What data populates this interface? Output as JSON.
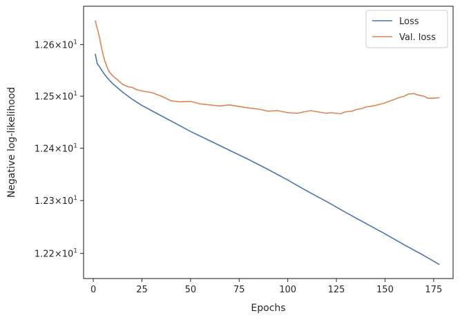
{
  "chart_data": {
    "type": "line",
    "title": "",
    "xlabel": "Epochs",
    "ylabel": "Negative log-likelihood",
    "xlim": [
      -5,
      185
    ],
    "ylim": [
      12.1528,
      12.6748
    ],
    "y_scale": "log",
    "xticks": [
      0,
      25,
      50,
      75,
      100,
      125,
      150,
      175
    ],
    "yticks": [
      {
        "value": 12.2,
        "mantissa": "1.22",
        "base": "10",
        "exp": "1"
      },
      {
        "value": 12.3,
        "mantissa": "1.23",
        "base": "10",
        "exp": "1"
      },
      {
        "value": 12.4,
        "mantissa": "1.24",
        "base": "10",
        "exp": "1"
      },
      {
        "value": 12.5,
        "mantissa": "1.25",
        "base": "10",
        "exp": "1"
      },
      {
        "value": 12.6,
        "mantissa": "1.26",
        "base": "10",
        "exp": "1"
      }
    ],
    "grid": false,
    "legend_position": "top-right",
    "series": [
      {
        "name": "Loss",
        "color": "#4c72b0",
        "x": [
          1,
          2,
          3,
          5,
          7,
          10,
          15,
          20,
          25,
          30,
          40,
          50,
          60,
          70,
          80,
          90,
          100,
          110,
          120,
          130,
          140,
          150,
          160,
          170,
          178
        ],
        "y": [
          12.582,
          12.563,
          12.558,
          12.546,
          12.536,
          12.524,
          12.508,
          12.494,
          12.482,
          12.472,
          12.452,
          12.432,
          12.414,
          12.396,
          12.378,
          12.359,
          12.339,
          12.318,
          12.298,
          12.277,
          12.257,
          12.237,
          12.216,
          12.196,
          12.179
        ]
      },
      {
        "name": "Val. loss",
        "color": "#dd8452",
        "x": [
          1,
          2,
          3,
          4,
          5,
          6,
          7,
          8,
          10,
          12,
          15,
          18,
          20,
          22,
          25,
          30,
          35,
          40,
          42,
          45,
          50,
          55,
          60,
          65,
          70,
          75,
          80,
          85,
          90,
          95,
          100,
          105,
          110,
          112,
          115,
          118,
          120,
          122,
          125,
          127,
          130,
          133,
          135,
          138,
          140,
          142,
          145,
          147,
          150,
          152,
          155,
          157,
          160,
          162,
          165,
          167,
          170,
          172,
          175,
          178
        ],
        "y": [
          12.647,
          12.632,
          12.617,
          12.598,
          12.581,
          12.567,
          12.557,
          12.548,
          12.539,
          12.533,
          12.523,
          12.518,
          12.517,
          12.513,
          12.51,
          12.507,
          12.5,
          12.491,
          12.49,
          12.489,
          12.49,
          12.485,
          12.483,
          12.481,
          12.483,
          12.48,
          12.477,
          12.475,
          12.471,
          12.472,
          12.468,
          12.467,
          12.471,
          12.472,
          12.47,
          12.468,
          12.467,
          12.468,
          12.467,
          12.466,
          12.47,
          12.471,
          12.474,
          12.476,
          12.479,
          12.48,
          12.482,
          12.484,
          12.487,
          12.49,
          12.494,
          12.497,
          12.5,
          12.504,
          12.505,
          12.502,
          12.5,
          12.496,
          12.496,
          12.497
        ]
      }
    ]
  }
}
